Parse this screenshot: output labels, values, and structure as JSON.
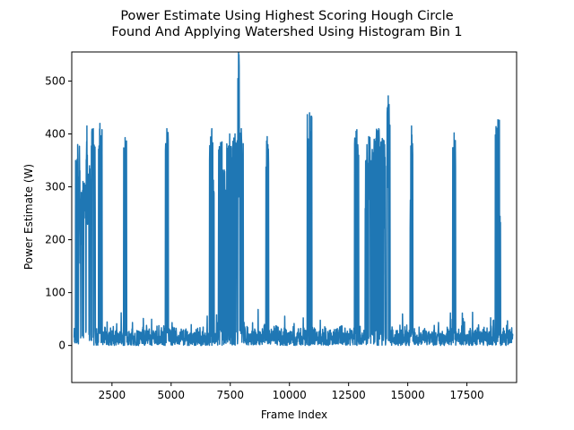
{
  "chart_data": {
    "type": "line",
    "title_lines": [
      "Power Estimate Using Highest Scoring Hough Circle",
      "Found And Applying Watershed Using Histogram Bin 1"
    ],
    "xlabel": "Frame Index",
    "ylabel": "Power Estimate (W)",
    "xlim": [
      800,
      19600
    ],
    "ylim": [
      -70,
      555
    ],
    "xticks": [
      2500,
      5000,
      7500,
      10000,
      12500,
      15000,
      17500
    ],
    "xtick_labels": [
      "2500",
      "5000",
      "7500",
      "10000",
      "12500",
      "15000",
      "17500"
    ],
    "yticks": [
      0,
      100,
      200,
      300,
      400,
      500
    ],
    "ytick_labels": [
      "0",
      "100",
      "200",
      "300",
      "400",
      "500"
    ],
    "grid": false,
    "line_color": "#1f77b4",
    "series": [
      {
        "baseline_range": [
          900,
          19450
        ],
        "baseline_level": [
          0,
          40
        ],
        "spike_clusters": [
          {
            "x_start": 950,
            "x_end": 1150,
            "peak": 380
          },
          {
            "x_start": 1150,
            "x_end": 1400,
            "peak": 310
          },
          {
            "x_start": 1400,
            "x_end": 1480,
            "peak": 415
          },
          {
            "x_start": 1480,
            "x_end": 1620,
            "peak": 340
          },
          {
            "x_start": 1620,
            "x_end": 1800,
            "peak": 410
          },
          {
            "x_start": 1900,
            "x_end": 2080,
            "peak": 420
          },
          {
            "x_start": 2990,
            "x_end": 3120,
            "peak": 393
          },
          {
            "x_start": 4760,
            "x_end": 4880,
            "peak": 410
          },
          {
            "x_start": 6620,
            "x_end": 6820,
            "peak": 410
          },
          {
            "x_start": 7000,
            "x_end": 7300,
            "peak": 385
          },
          {
            "x_start": 7350,
            "x_end": 7600,
            "peak": 400
          },
          {
            "x_start": 7600,
            "x_end": 7800,
            "peak": 400
          },
          {
            "x_start": 7820,
            "x_end": 7880,
            "peak": 555
          },
          {
            "x_start": 7880,
            "x_end": 8050,
            "peak": 410
          },
          {
            "x_start": 9000,
            "x_end": 9120,
            "peak": 395
          },
          {
            "x_start": 10750,
            "x_end": 10950,
            "peak": 440
          },
          {
            "x_start": 12750,
            "x_end": 12950,
            "peak": 408
          },
          {
            "x_start": 13200,
            "x_end": 13500,
            "peak": 395
          },
          {
            "x_start": 13500,
            "x_end": 14050,
            "peak": 410
          },
          {
            "x_start": 14100,
            "x_end": 14250,
            "peak": 472
          },
          {
            "x_start": 15100,
            "x_end": 15220,
            "peak": 415
          },
          {
            "x_start": 16900,
            "x_end": 17020,
            "peak": 402
          },
          {
            "x_start": 18700,
            "x_end": 18920,
            "peak": 427
          }
        ]
      }
    ]
  }
}
